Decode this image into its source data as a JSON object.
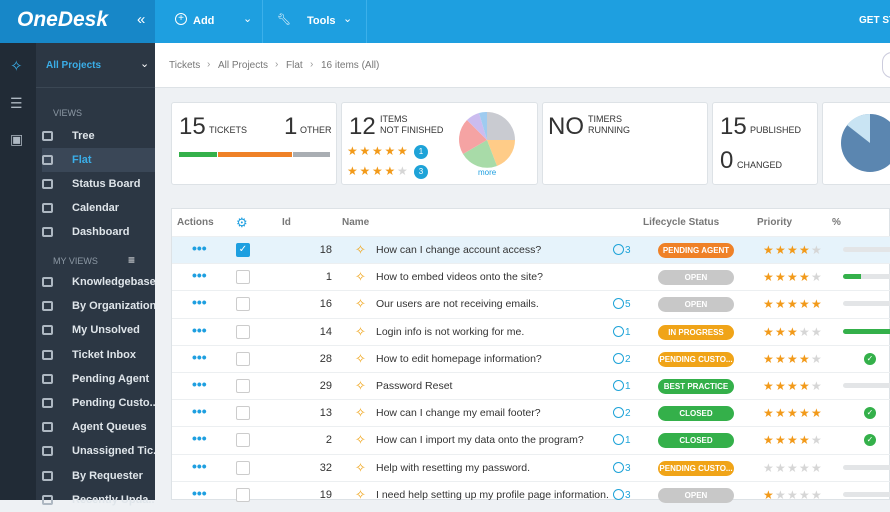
{
  "topbar": {
    "logo": "OneDesk",
    "collapse": "«",
    "add": "Add",
    "tools": "Tools",
    "cta": "GET ST"
  },
  "sidebar": {
    "project": "All Projects",
    "views_heading": "VIEWS",
    "views": [
      "Tree",
      "Flat",
      "Status Board",
      "Calendar",
      "Dashboard"
    ],
    "active_view": 1,
    "my_views_heading": "MY VIEWS",
    "my_views": [
      "Knowledgebase",
      "By Organization",
      "My Unsolved",
      "Ticket Inbox",
      "Pending Agent",
      "Pending Custo...",
      "Agent Queues",
      "Unassigned Tic...",
      "By Requester",
      "Recently Upda..."
    ]
  },
  "breadcrumb": {
    "items": [
      "Tickets",
      "All Projects",
      "Flat"
    ],
    "count": "16 items (All)"
  },
  "cards": {
    "tickets": {
      "value": 15,
      "label": "TICKETS",
      "other_value": 1,
      "other_label": "OTHER"
    },
    "not_finished": {
      "value": 12,
      "label_1": "ITEMS",
      "label_2": "NOT FINISHED",
      "ratings": [
        {
          "stars": 5,
          "count": 1
        },
        {
          "stars": 4,
          "count": 3
        }
      ],
      "more": "more"
    },
    "timers": {
      "value": "NO",
      "label_1": "TIMERS",
      "label_2": "RUNNING"
    },
    "published": {
      "value": 15,
      "label": "PUBLISHED",
      "changed_value": 0,
      "changed_label": "CHANGED"
    }
  },
  "table": {
    "columns": [
      "Actions",
      "Id",
      "Name",
      "Lifecycle Status",
      "Priority",
      "% Complete"
    ],
    "rows": [
      {
        "id": 18,
        "name": "How can I change account access?",
        "comments": 3,
        "status": "PENDING AGENT",
        "status_color": "#ef8127",
        "priority": 4,
        "complete": 0,
        "checked": true
      },
      {
        "id": 1,
        "name": "How to embed videos onto the site?",
        "comments": null,
        "status": "OPEN",
        "status_color": "#c8c8c8",
        "priority": 4,
        "complete": 30,
        "checked": false
      },
      {
        "id": 16,
        "name": "Our users are not receiving emails.",
        "comments": 5,
        "status": "OPEN",
        "status_color": "#c8c8c8",
        "priority": 5,
        "complete": 0,
        "checked": false
      },
      {
        "id": 14,
        "name": "Login info is not working for me.",
        "comments": 1,
        "status": "IN PROGRESS",
        "status_color": "#f0a418",
        "priority": 3,
        "complete": 80,
        "checked": false
      },
      {
        "id": 28,
        "name": "How to edit homepage information?",
        "comments": 2,
        "status": "PENDING CUSTO...",
        "status_color": "#f0a418",
        "priority": 4,
        "complete": 100,
        "checked": false
      },
      {
        "id": 29,
        "name": "Password Reset",
        "comments": 1,
        "status": "BEST PRACTICE",
        "status_color": "#34b04a",
        "priority": 4,
        "complete": 0,
        "checked": false
      },
      {
        "id": 13,
        "name": "How can I change my email footer?",
        "comments": 2,
        "status": "CLOSED",
        "status_color": "#34b04a",
        "priority": 5,
        "complete": 100,
        "checked": false
      },
      {
        "id": 2,
        "name": "How can I import my data onto the program?",
        "comments": 1,
        "status": "CLOSED",
        "status_color": "#34b04a",
        "priority": 4,
        "complete": 100,
        "checked": false
      },
      {
        "id": 32,
        "name": "Help with resetting my password.",
        "comments": 3,
        "status": "PENDING CUSTO...",
        "status_color": "#f0a418",
        "priority": 0,
        "complete": 0,
        "checked": false
      },
      {
        "id": 19,
        "name": "I need help setting up my profile page information.",
        "comments": 3,
        "status": "OPEN",
        "status_color": "#c8c8c8",
        "priority": 1,
        "complete": 0,
        "checked": false
      }
    ]
  }
}
